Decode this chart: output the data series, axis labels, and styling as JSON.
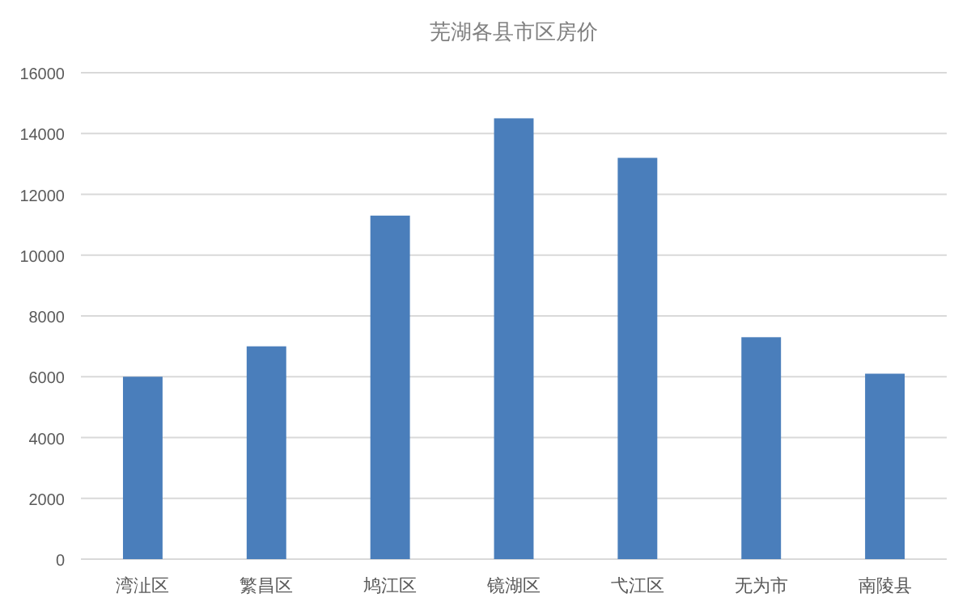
{
  "chart_data": {
    "type": "bar",
    "title": "芜湖各县市区房价",
    "categories": [
      "湾沚区",
      "繁昌区",
      "鸠江区",
      "镜湖区",
      "弋江区",
      "无为市",
      "南陵县"
    ],
    "values": [
      6000,
      7000,
      11300,
      14500,
      13200,
      7300,
      6100
    ],
    "color": "#4a7ebb",
    "ylim": [
      0,
      16000
    ],
    "yticks": [
      0,
      2000,
      4000,
      6000,
      8000,
      10000,
      12000,
      14000,
      16000
    ],
    "grid": "y"
  }
}
